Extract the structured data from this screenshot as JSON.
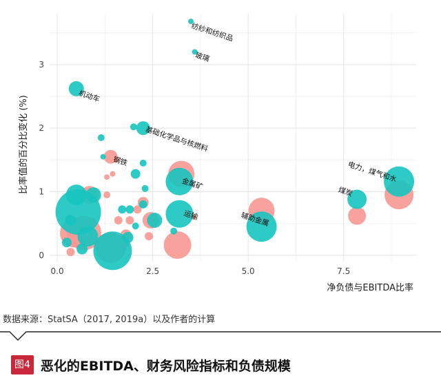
{
  "chart_data": {
    "type": "scatter",
    "xlabel": "净负债与EBITDA比率",
    "ylabel": "比率值的百分比变化 (%)",
    "xlim": [
      -0.2,
      9.4
    ],
    "ylim": [
      -0.1,
      3.8
    ],
    "x_ticks": [
      0.0,
      2.5,
      5.0,
      7.5
    ],
    "x_tick_labels": [
      "0.0",
      "2.5",
      "5.0",
      "7.5"
    ],
    "y_ticks": [
      0,
      1,
      2,
      3
    ],
    "y_tick_labels": [
      "0",
      "1",
      "2",
      "3"
    ],
    "grid": true,
    "series_colors": {
      "teal": "#17c4bf",
      "pink": "#f79894"
    },
    "points": [
      {
        "x": 3.5,
        "y": 3.68,
        "size": 4,
        "color": "teal"
      },
      {
        "x": 3.6,
        "y": 3.2,
        "size": 4,
        "color": "teal"
      },
      {
        "x": 0.5,
        "y": 2.62,
        "size": 11,
        "color": "teal"
      },
      {
        "x": 2.0,
        "y": 2.02,
        "size": 5,
        "color": "teal"
      },
      {
        "x": 2.25,
        "y": 2.0,
        "size": 10,
        "color": "teal"
      },
      {
        "x": 1.15,
        "y": 1.85,
        "size": 5,
        "color": "teal"
      },
      {
        "x": 1.2,
        "y": 1.55,
        "size": 4,
        "color": "teal"
      },
      {
        "x": 1.4,
        "y": 1.55,
        "size": 10,
        "color": "pink"
      },
      {
        "x": 1.55,
        "y": 1.5,
        "size": 4,
        "color": "pink"
      },
      {
        "x": 2.25,
        "y": 1.45,
        "size": 5,
        "color": "teal"
      },
      {
        "x": 2.05,
        "y": 1.28,
        "size": 7,
        "color": "teal"
      },
      {
        "x": 1.45,
        "y": 1.28,
        "size": 4,
        "color": "pink"
      },
      {
        "x": 1.3,
        "y": 1.23,
        "size": 4,
        "color": "pink"
      },
      {
        "x": 3.25,
        "y": 1.28,
        "size": 19,
        "color": "pink"
      },
      {
        "x": 3.2,
        "y": 1.16,
        "size": 20,
        "color": "teal"
      },
      {
        "x": 2.3,
        "y": 1.05,
        "size": 5,
        "color": "teal"
      },
      {
        "x": 2.25,
        "y": 0.83,
        "size": 8,
        "color": "pink"
      },
      {
        "x": 2.25,
        "y": 0.8,
        "size": 6,
        "color": "teal"
      },
      {
        "x": 1.9,
        "y": 0.72,
        "size": 6,
        "color": "teal"
      },
      {
        "x": 2.1,
        "y": 0.72,
        "size": 6,
        "color": "pink"
      },
      {
        "x": 2.45,
        "y": 0.55,
        "size": 12,
        "color": "pink"
      },
      {
        "x": 2.55,
        "y": 0.55,
        "size": 11,
        "color": "teal"
      },
      {
        "x": 1.9,
        "y": 0.55,
        "size": 6,
        "color": "pink"
      },
      {
        "x": 2.05,
        "y": 0.46,
        "size": 5,
        "color": "teal"
      },
      {
        "x": 3.2,
        "y": 0.65,
        "size": 20,
        "color": "teal"
      },
      {
        "x": 3.55,
        "y": 0.6,
        "size": 4,
        "color": "pink"
      },
      {
        "x": 3.05,
        "y": 0.38,
        "size": 5,
        "color": "teal"
      },
      {
        "x": 3.15,
        "y": 0.16,
        "size": 20,
        "color": "pink"
      },
      {
        "x": 0.5,
        "y": 0.95,
        "size": 15,
        "color": "teal"
      },
      {
        "x": 0.85,
        "y": 0.95,
        "size": 13,
        "color": "pink"
      },
      {
        "x": 0.95,
        "y": 0.95,
        "size": 11,
        "color": "teal"
      },
      {
        "x": 0.55,
        "y": 0.68,
        "size": 33,
        "color": "teal"
      },
      {
        "x": 0.45,
        "y": 0.35,
        "size": 21,
        "color": "pink"
      },
      {
        "x": 0.7,
        "y": 0.35,
        "size": 25,
        "color": "pink"
      },
      {
        "x": 0.8,
        "y": 0.3,
        "size": 15,
        "color": "teal"
      },
      {
        "x": 0.35,
        "y": 0.55,
        "size": 8,
        "color": "teal"
      },
      {
        "x": 0.25,
        "y": 0.2,
        "size": 7,
        "color": "teal"
      },
      {
        "x": 0.55,
        "y": 0.18,
        "size": 6,
        "color": "pink"
      },
      {
        "x": 0.35,
        "y": 0.05,
        "size": 6,
        "color": "pink"
      },
      {
        "x": 0.65,
        "y": 0.1,
        "size": 8,
        "color": "teal"
      },
      {
        "x": 1.3,
        "y": 0.95,
        "size": 5,
        "color": "pink"
      },
      {
        "x": 1.6,
        "y": 0.55,
        "size": 6,
        "color": "pink"
      },
      {
        "x": 1.7,
        "y": 0.72,
        "size": 6,
        "color": "teal"
      },
      {
        "x": 1.8,
        "y": 0.32,
        "size": 8,
        "color": "pink"
      },
      {
        "x": 1.85,
        "y": 0.28,
        "size": 8,
        "color": "teal"
      },
      {
        "x": 1.8,
        "y": 0.18,
        "size": 5,
        "color": "pink"
      },
      {
        "x": 1.4,
        "y": 0.12,
        "size": 22,
        "color": "pink"
      },
      {
        "x": 1.45,
        "y": 0.07,
        "size": 28,
        "color": "teal"
      },
      {
        "x": 2.4,
        "y": 0.3,
        "size": 6,
        "color": "pink"
      },
      {
        "x": 5.35,
        "y": 0.7,
        "size": 19,
        "color": "pink"
      },
      {
        "x": 5.35,
        "y": 0.45,
        "size": 22,
        "color": "teal"
      },
      {
        "x": 7.85,
        "y": 0.62,
        "size": 13,
        "color": "pink"
      },
      {
        "x": 7.85,
        "y": 0.88,
        "size": 14,
        "color": "teal"
      },
      {
        "x": 8.95,
        "y": 0.95,
        "size": 21,
        "color": "pink"
      },
      {
        "x": 8.95,
        "y": 1.16,
        "size": 22,
        "color": "teal"
      }
    ],
    "annotations": [
      {
        "text": "纺纱和纺织品",
        "x": 3.5,
        "y": 3.58,
        "rotate": 18
      },
      {
        "text": "玻璃",
        "x": 3.6,
        "y": 3.12,
        "rotate": 18
      },
      {
        "text": "机动车",
        "x": 0.55,
        "y": 2.52,
        "rotate": 18
      },
      {
        "text": "基础化学品与核燃料",
        "x": 2.3,
        "y": 1.95,
        "rotate": 18
      },
      {
        "text": "钢铁",
        "x": 1.45,
        "y": 1.48,
        "rotate": 18
      },
      {
        "text": "金属矿",
        "x": 3.25,
        "y": 1.14,
        "rotate": 18
      },
      {
        "text": "运输",
        "x": 3.3,
        "y": 0.63,
        "rotate": 18
      },
      {
        "text": "辅助金属",
        "x": 4.8,
        "y": 0.6,
        "rotate": 18
      },
      {
        "text": "电力，煤气和水",
        "x": 7.6,
        "y": 1.4,
        "rotate": 18
      },
      {
        "text": "煤炭",
        "x": 7.35,
        "y": 1.0,
        "rotate": 18
      }
    ]
  },
  "source_note": "数据来源：StatSA（2017, 2019a）以及作者的计算",
  "figure_tag": "图4",
  "figure_title": "恶化的EBITDA、财务风险指标和负债规模"
}
